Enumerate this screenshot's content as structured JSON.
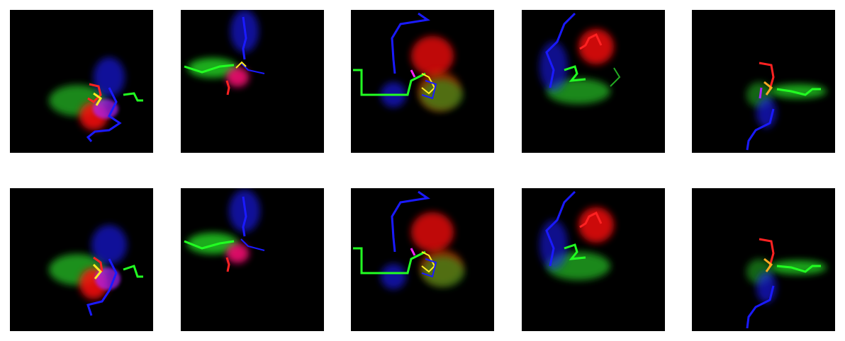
{
  "figure": {
    "rows": 2,
    "cols": 5,
    "background": "#ffffff",
    "panel_background": "#000000",
    "channel_colors": {
      "red": "#ff0000",
      "green": "#22ff22",
      "blue": "#1a1aff"
    },
    "description_note": "",
    "panels": [
      {
        "row": 0,
        "col": 0
      },
      {
        "row": 0,
        "col": 1
      },
      {
        "row": 0,
        "col": 2
      },
      {
        "row": 0,
        "col": 3
      },
      {
        "row": 0,
        "col": 4
      },
      {
        "row": 1,
        "col": 0
      },
      {
        "row": 1,
        "col": 1
      },
      {
        "row": 1,
        "col": 2
      },
      {
        "row": 1,
        "col": 3
      },
      {
        "row": 1,
        "col": 4
      }
    ]
  }
}
